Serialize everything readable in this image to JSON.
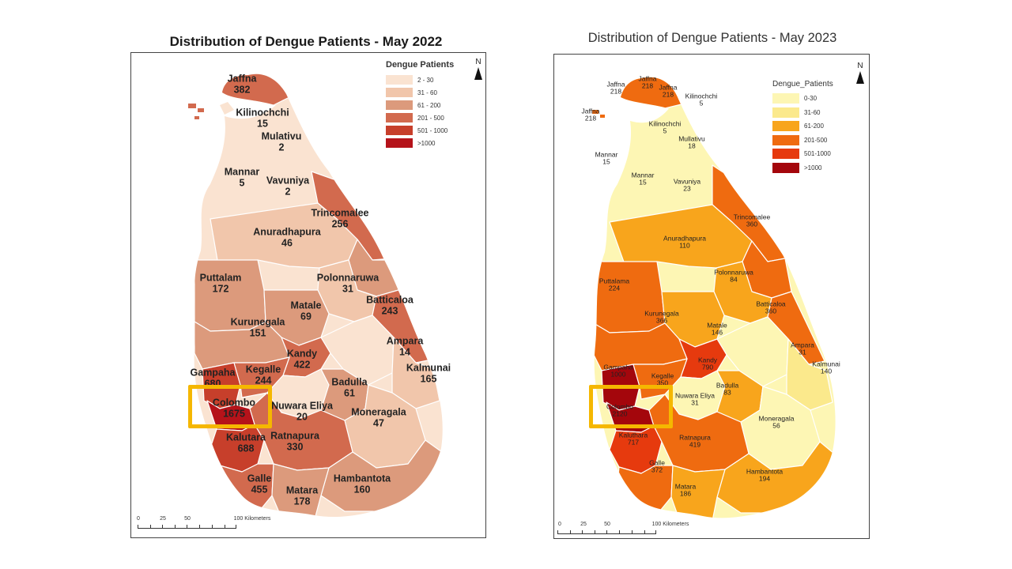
{
  "maps": [
    {
      "title": "Distribution of Dengue Patients - May 2022",
      "legend_title": "Dengue Patients",
      "legend": [
        {
          "label": "2 - 30",
          "color": "#fae3d1"
        },
        {
          "label": "31 - 60",
          "color": "#f1c6ab"
        },
        {
          "label": "61 - 200",
          "color": "#dc9a7c"
        },
        {
          "label": "201 - 500",
          "color": "#d26a4e"
        },
        {
          "label": "501 - 1000",
          "color": "#c73f2b"
        },
        {
          "label": ">1000",
          "color": "#b5131a"
        }
      ],
      "north": "N",
      "scale_labels": [
        "0",
        "25",
        "50",
        "100 Kilometers"
      ],
      "districts": [
        {
          "name": "Jaffna",
          "value": "382"
        },
        {
          "name": "Kilinochchi",
          "value": "15"
        },
        {
          "name": "Mulativu",
          "value": "2"
        },
        {
          "name": "Mannar",
          "value": "5"
        },
        {
          "name": "Vavuniya",
          "value": "2"
        },
        {
          "name": "Trincomalee",
          "value": "256"
        },
        {
          "name": "Anuradhapura",
          "value": "46"
        },
        {
          "name": "Puttalam",
          "value": "172"
        },
        {
          "name": "Polonnaruwa",
          "value": "31"
        },
        {
          "name": "Matale",
          "value": "69"
        },
        {
          "name": "Batticaloa",
          "value": "243"
        },
        {
          "name": "Kurunegala",
          "value": "151"
        },
        {
          "name": "Ampara",
          "value": "14"
        },
        {
          "name": "Kandy",
          "value": "422"
        },
        {
          "name": "Kalmunai",
          "value": "165"
        },
        {
          "name": "Gampaha",
          "value": "680"
        },
        {
          "name": "Kegalle",
          "value": "244"
        },
        {
          "name": "Badulla",
          "value": "61"
        },
        {
          "name": "Colombo",
          "value": "1675"
        },
        {
          "name": "Nuwara Eliya",
          "value": "20"
        },
        {
          "name": "Moneragala",
          "value": "47"
        },
        {
          "name": "Kalutara",
          "value": "688"
        },
        {
          "name": "Ratnapura",
          "value": "330"
        },
        {
          "name": "Hambantota",
          "value": "160"
        },
        {
          "name": "Galle",
          "value": "455"
        },
        {
          "name": "Matara",
          "value": "178"
        }
      ]
    },
    {
      "title": "Distribution of Dengue Patients - May 2023",
      "legend_title": "Dengue_Patients",
      "legend": [
        {
          "label": "0-30",
          "color": "#fdf6b4"
        },
        {
          "label": "31-60",
          "color": "#fbe98c"
        },
        {
          "label": "61-200",
          "color": "#f8a51c"
        },
        {
          "label": "201-500",
          "color": "#ef6b10"
        },
        {
          "label": "501-1000",
          "color": "#e63a0e"
        },
        {
          "label": ">1000",
          "color": "#a4060c"
        }
      ],
      "north": "N",
      "scale_labels": [
        "0",
        "25",
        "50",
        "100 Kilometers"
      ],
      "districts": [
        {
          "name": "Jaffna",
          "value": "218"
        },
        {
          "name": "Jaffna",
          "value": "218"
        },
        {
          "name": "Jaffna",
          "value": "218"
        },
        {
          "name": "Jaffna",
          "value": "218"
        },
        {
          "name": "Kilinochchi",
          "value": "5"
        },
        {
          "name": "Kilinochchi",
          "value": "5"
        },
        {
          "name": "Mullativu",
          "value": "18"
        },
        {
          "name": "Mannar",
          "value": "15"
        },
        {
          "name": "Mannar",
          "value": "15"
        },
        {
          "name": "Vavuniya",
          "value": "23"
        },
        {
          "name": "Trincomalee",
          "value": "360"
        },
        {
          "name": "Anuradhapura",
          "value": "110"
        },
        {
          "name": "Polonnaruwa",
          "value": "84"
        },
        {
          "name": "Puttalama",
          "value": "224"
        },
        {
          "name": "Batticaloa",
          "value": "360"
        },
        {
          "name": "Kurunegala",
          "value": "366"
        },
        {
          "name": "Matale",
          "value": "146"
        },
        {
          "name": "Ampara",
          "value": "31"
        },
        {
          "name": "Kalmunai",
          "value": "140"
        },
        {
          "name": "Kandy",
          "value": "790"
        },
        {
          "name": "Gampaha",
          "value": "1000"
        },
        {
          "name": "Kegalle",
          "value": "350"
        },
        {
          "name": "Badulla",
          "value": "83"
        },
        {
          "name": "Nuwara Eliya",
          "value": "31"
        },
        {
          "name": "Colombo",
          "value": "2120"
        },
        {
          "name": "Moneragala",
          "value": "56"
        },
        {
          "name": "Kaluthara",
          "value": "717"
        },
        {
          "name": "Ratnapura",
          "value": "419"
        },
        {
          "name": "Hambantota",
          "value": "194"
        },
        {
          "name": "Galle",
          "value": "372"
        },
        {
          "name": "Matara",
          "value": "186"
        }
      ]
    }
  ]
}
